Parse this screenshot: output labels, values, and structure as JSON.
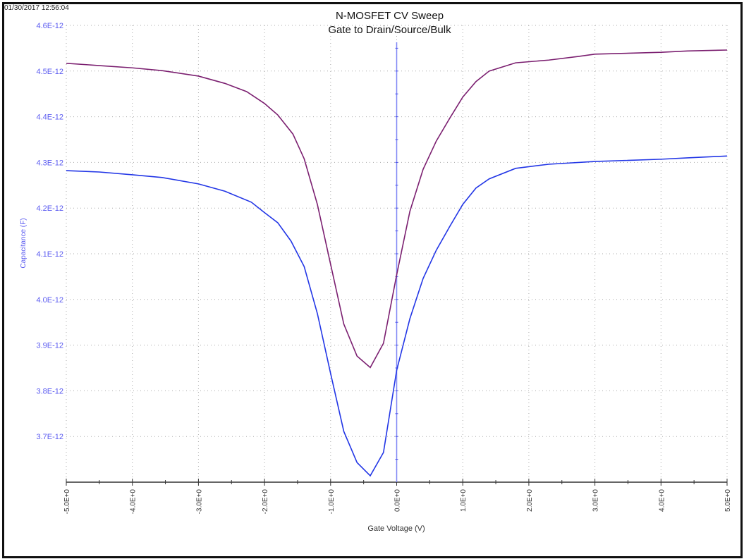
{
  "timestamp": "01/30/2017 12:56:04",
  "chart_data": {
    "type": "line",
    "title": "N-MOSFET CV Sweep",
    "subtitle": "Gate to Drain/Source/Bulk",
    "xlabel": "Gate Voltage (V)",
    "ylabel": "Capacitance (F)",
    "xlim": [
      -5,
      5
    ],
    "ylim": [
      3.6e-12,
      4.6e-12
    ],
    "grid": true,
    "x_ticks": [
      "-5.0E+0",
      "-4.0E+0",
      "-3.0E+0",
      "-2.0E+0",
      "-1.0E+0",
      "0.0E+0",
      "1.0E+0",
      "2.0E+0",
      "3.0E+0",
      "4.0E+0",
      "5.0E+0"
    ],
    "y_ticks": [
      "3.7E-12",
      "3.8E-12",
      "3.9E-12",
      "4.0E-12",
      "4.1E-12",
      "4.2E-12",
      "4.3E-12",
      "4.4E-12",
      "4.5E-12",
      "4.6E-12"
    ],
    "colors": {
      "series1": "#7b1f70",
      "series2": "#2236e6",
      "axis_labels": "#5a5af0",
      "zero_line": "#7f86f5"
    },
    "series": [
      {
        "color": "#7b1f70",
        "x": [
          -5,
          -4.5,
          -4,
          -3.55,
          -3,
          -2.6,
          -2.27,
          -2,
          -1.8,
          -1.57,
          -1.4,
          -1.2,
          -1,
          -0.8,
          -0.6,
          -0.4,
          -0.2,
          0,
          0.2,
          0.4,
          0.6,
          0.8,
          1,
          1.2,
          1.4,
          1.8,
          2.3,
          2.75,
          3,
          4,
          4.4,
          5
        ],
        "y": [
          4.517e-12,
          4.512e-12,
          4.507e-12,
          4.501e-12,
          4.489e-12,
          4.473e-12,
          4.455e-12,
          4.429e-12,
          4.404e-12,
          4.362e-12,
          4.308e-12,
          4.208e-12,
          4.077e-12,
          3.946e-12,
          3.876e-12,
          3.851e-12,
          3.904e-12,
          4.054e-12,
          4.193e-12,
          4.285e-12,
          4.347e-12,
          4.396e-12,
          4.443e-12,
          4.477e-12,
          4.5e-12,
          4.518e-12,
          4.524e-12,
          4.532e-12,
          4.537e-12,
          4.541e-12,
          4.544e-12,
          4.546e-12
        ]
      },
      {
        "color": "#2236e6",
        "x": [
          -5,
          -4.5,
          -4,
          -3.55,
          -3,
          -2.6,
          -2.2,
          -2,
          -1.8,
          -1.6,
          -1.4,
          -1.2,
          -1,
          -0.8,
          -0.6,
          -0.4,
          -0.2,
          0,
          0.2,
          0.4,
          0.6,
          0.8,
          1,
          1.2,
          1.4,
          1.8,
          2.3,
          3,
          4,
          4.4,
          5
        ],
        "y": [
          4.282e-12,
          4.279e-12,
          4.273e-12,
          4.267e-12,
          4.253e-12,
          4.237e-12,
          4.213e-12,
          4.19e-12,
          4.168e-12,
          4.128e-12,
          4.072e-12,
          3.969e-12,
          3.838e-12,
          3.711e-12,
          3.643e-12,
          3.614e-12,
          3.665e-12,
          3.845e-12,
          3.958e-12,
          4.046e-12,
          4.108e-12,
          4.159e-12,
          4.208e-12,
          4.244e-12,
          4.264e-12,
          4.287e-12,
          4.296e-12,
          4.302e-12,
          4.307e-12,
          4.31e-12,
          4.314e-12
        ]
      }
    ]
  }
}
